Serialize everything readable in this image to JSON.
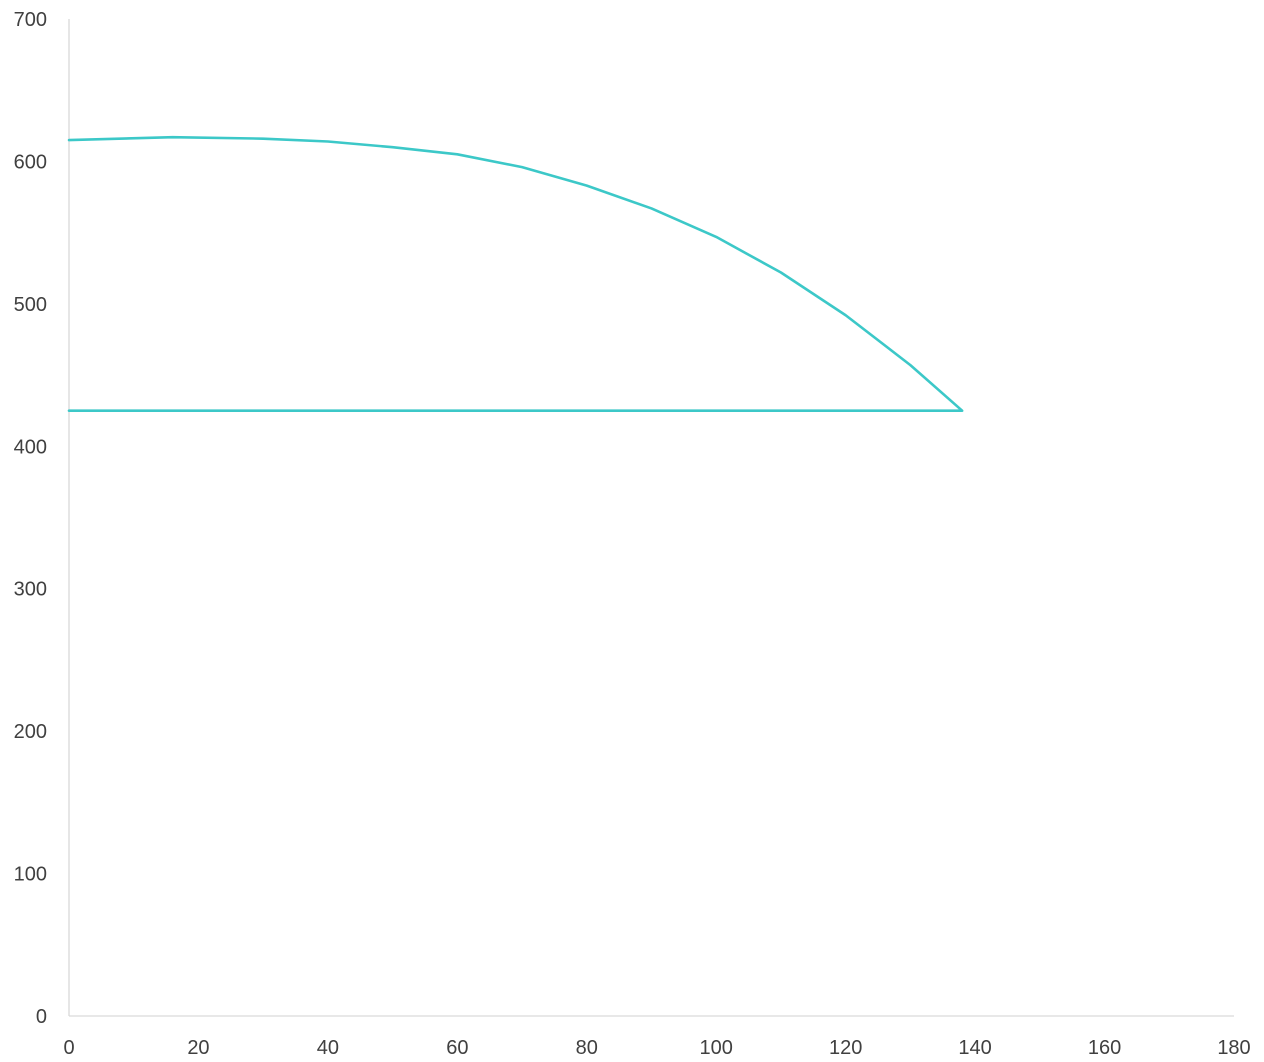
{
  "chart_data": {
    "type": "line",
    "title": "",
    "xlabel": "",
    "ylabel": "",
    "xlim": [
      0,
      180
    ],
    "ylim": [
      0,
      700
    ],
    "x_ticks": [
      "0",
      "20",
      "40",
      "60",
      "80",
      "100",
      "120",
      "140",
      "160",
      "180"
    ],
    "y_ticks": [
      "0",
      "100",
      "200",
      "300",
      "400",
      "500",
      "600",
      "700"
    ],
    "grid": false,
    "legend": "none",
    "line_color": "#3cc8c8",
    "series": [
      {
        "points": [
          [
            0,
            425
          ],
          [
            138,
            425
          ],
          [
            130,
            457
          ],
          [
            120,
            492
          ],
          [
            110,
            522
          ],
          [
            100,
            547
          ],
          [
            90,
            567
          ],
          [
            80,
            583
          ],
          [
            70,
            596
          ],
          [
            60,
            605
          ],
          [
            50,
            610
          ],
          [
            40,
            614
          ],
          [
            30,
            616
          ],
          [
            16,
            617
          ],
          [
            0,
            615
          ]
        ]
      }
    ]
  }
}
